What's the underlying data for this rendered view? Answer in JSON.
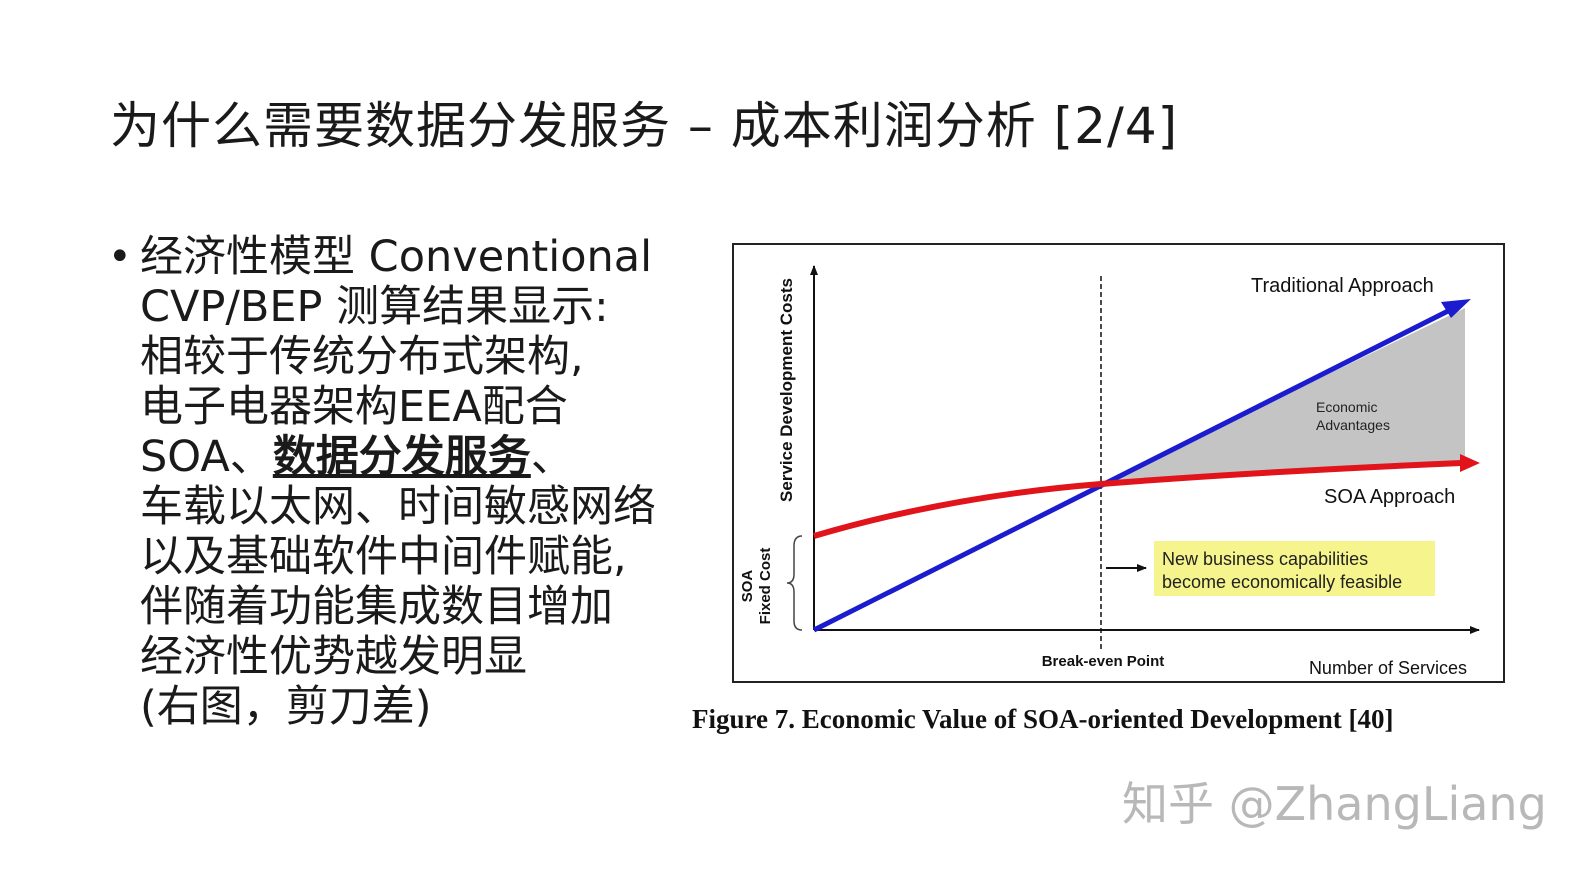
{
  "slide": {
    "title": "为什么需要数据分发服务 – 成本利润分析 [2/4]"
  },
  "bullet": {
    "marker": "•",
    "line1": "经济性模型 Conventional",
    "line2": "CVP/BEP 测算结果显示:",
    "line3": "相较于传统分布式架构,",
    "line4": "电子电器架构EEA配合",
    "line5_pre": "SOA、",
    "line5_emph": "数据分发服务",
    "line5_post": "、",
    "line6": "车载以太网、时间敏感网络",
    "line7": "以及基础软件中间件赋能,",
    "line8": "伴随着功能集成数目增加",
    "line9": "经济性优势越发明显",
    "line10": " (右图，剪刀差)"
  },
  "figure": {
    "y_axis_label": "Service Development Costs",
    "x_axis_label": "Number of Services",
    "fixed_cost_label_1": "SOA",
    "fixed_cost_label_2": "Fixed Cost",
    "traditional_label": "Traditional Approach",
    "soa_label": "SOA Approach",
    "advantage_label_1": "Economic",
    "advantage_label_2": "Advantages",
    "breakeven_label": "Break-even Point",
    "callout_line_1": "New business capabilities",
    "callout_line_2": "become economically feasible",
    "caption": "Figure 7. Economic Value of SOA-oriented Development [40]",
    "colors": {
      "traditional": "#1c1ccf",
      "soa": "#e0141a",
      "advantage_fill": "#c4c4c4",
      "callout_bg": "#f6f48c"
    }
  },
  "watermark": {
    "text": "知乎 @ZhangLiang"
  }
}
